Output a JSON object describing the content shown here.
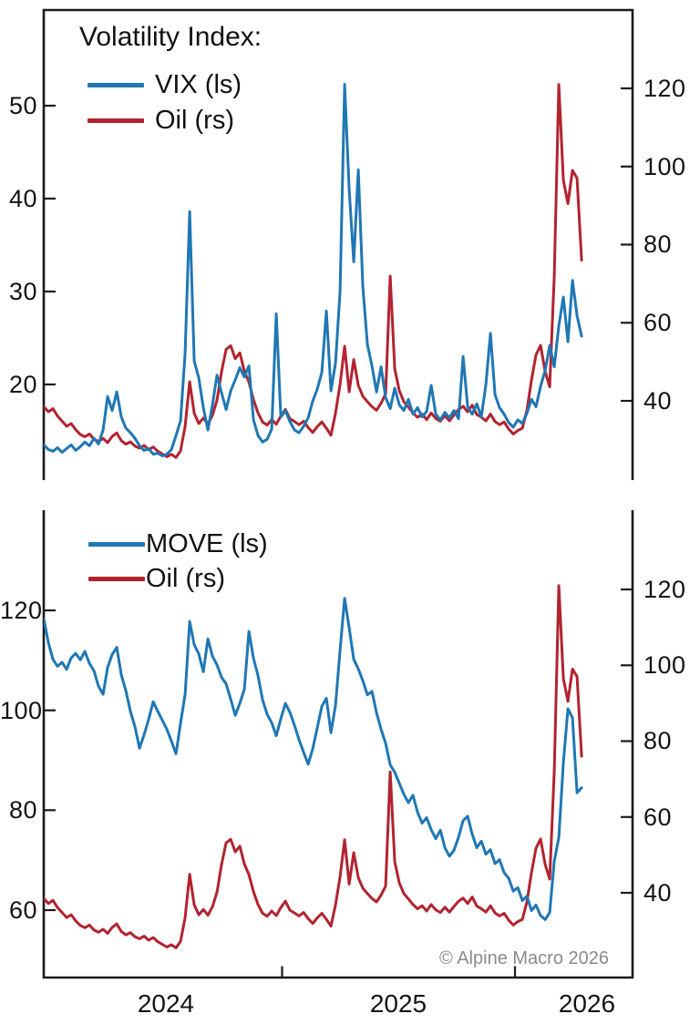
{
  "figure": {
    "copyright": "© Alpine Macro 2026",
    "accent_blue": "#1f77b4",
    "accent_red": "#b2232f",
    "axis_color": "#1a1a1a"
  },
  "top_panel": {
    "legend": {
      "title": "Volatility Index:",
      "items": [
        {
          "label": "VIX (ls)",
          "color": "#1f77b4"
        },
        {
          "label": "Oil (rs)",
          "color": "#b2232f"
        }
      ]
    },
    "left_ticks": [
      "50",
      "40",
      "30",
      "20"
    ],
    "right_ticks": [
      "120",
      "100",
      "80",
      "60",
      "40"
    ]
  },
  "bottom_panel": {
    "legend": {
      "items": [
        {
          "label": "MOVE (ls)",
          "color": "#1f77b4"
        },
        {
          "label": "Oil (rs)",
          "color": "#b2232f"
        }
      ]
    },
    "left_ticks": [
      "120",
      "100",
      "80",
      "60"
    ],
    "right_ticks": [
      "120",
      "100",
      "80",
      "60",
      "40"
    ]
  },
  "x_axis": {
    "labels": [
      "2024",
      "2025",
      "2026"
    ]
  },
  "chart_data": [
    {
      "type": "line",
      "title": "Volatility Index: VIX vs Oil volatility",
      "x_unit": "decimal_year",
      "x_start": 2023.977,
      "x_step": 0.01957,
      "xticks": [
        2025,
        2026
      ],
      "xtick_labels": [
        "2024",
        "2025",
        "2026"
      ],
      "ylim_left": [
        9.7,
        60.3
      ],
      "yticks_left": [
        20,
        30,
        40,
        50
      ],
      "ylim_right": [
        19.7,
        140.0
      ],
      "yticks_right": [
        40,
        60,
        80,
        100,
        120
      ],
      "grid": false,
      "legend_position": "upper-left",
      "series": [
        {
          "name": "VIX (ls)",
          "axis": "left",
          "color": "#1f77b4",
          "values": [
            13.5,
            13.0,
            12.8,
            13.2,
            12.7,
            13.1,
            13.5,
            12.9,
            13.3,
            13.8,
            13.4,
            14.2,
            13.6,
            15.1,
            18.7,
            17.2,
            19.2,
            16.5,
            15.3,
            14.8,
            14.2,
            13.4,
            12.9,
            13.1,
            12.5,
            12.6,
            12.3,
            12.5,
            13.0,
            14.5,
            16.1,
            23.4,
            38.6,
            22.5,
            20.7,
            17.5,
            15.1,
            17.8,
            21.0,
            19.1,
            17.3,
            19.3,
            20.5,
            21.8,
            20.8,
            22.0,
            16.2,
            14.5,
            13.8,
            14.1,
            15.2,
            27.6,
            16.5,
            17.2,
            16.0,
            15.1,
            14.8,
            15.5,
            16.4,
            18.2,
            19.5,
            21.3,
            27.9,
            19.3,
            22.3,
            30.0,
            52.3,
            41.0,
            33.2,
            43.1,
            30.5,
            24.3,
            22.0,
            19.2,
            21.9,
            18.6,
            17.4,
            19.6,
            17.8,
            17.2,
            18.4,
            16.8,
            17.5,
            16.5,
            17.1,
            19.9,
            16.8,
            16.2,
            17.0,
            16.4,
            17.2,
            16.3,
            23.0,
            17.6,
            16.8,
            17.9,
            16.5,
            20.0,
            25.5,
            18.9,
            17.5,
            16.8,
            15.9,
            15.4,
            16.2,
            15.8,
            16.9,
            18.4,
            17.6,
            19.8,
            21.5,
            24.2,
            21.9,
            26.3,
            29.4,
            24.6,
            31.2,
            27.4,
            25.2
          ]
        },
        {
          "name": "Oil (rs)",
          "axis": "right",
          "color": "#b2232f",
          "values": [
            38.5,
            37.2,
            38.0,
            36.1,
            34.8,
            33.5,
            34.2,
            32.6,
            31.4,
            30.8,
            31.5,
            30.2,
            29.6,
            30.4,
            29.3,
            30.9,
            31.8,
            29.8,
            28.9,
            29.5,
            28.4,
            27.9,
            28.6,
            27.5,
            28.2,
            27.1,
            26.4,
            25.7,
            26.3,
            25.5,
            27.2,
            33.5,
            44.9,
            36.8,
            34.2,
            35.6,
            34.1,
            36.3,
            40.2,
            47.5,
            53.2,
            54.1,
            50.8,
            52.3,
            47.6,
            44.8,
            40.3,
            36.9,
            34.6,
            33.8,
            35.2,
            34.0,
            36.1,
            37.8,
            35.4,
            34.7,
            33.9,
            34.8,
            33.2,
            31.9,
            33.4,
            34.6,
            33.0,
            31.2,
            36.8,
            44.2,
            54.0,
            42.3,
            50.6,
            44.0,
            41.2,
            39.8,
            38.5,
            37.6,
            39.4,
            41.8,
            71.9,
            48.2,
            42.6,
            39.8,
            38.4,
            36.9,
            35.8,
            36.6,
            35.2,
            36.9,
            35.5,
            34.8,
            36.2,
            34.9,
            36.4,
            37.8,
            38.6,
            37.2,
            38.9,
            36.5,
            35.8,
            34.9,
            36.6,
            34.7,
            33.9,
            34.6,
            32.8,
            31.5,
            32.4,
            33.0,
            37.6,
            45.3,
            51.8,
            54.2,
            47.5,
            43.6,
            72.0,
            121.0,
            96.5,
            90.5,
            99.0,
            97.0,
            76.0
          ]
        }
      ]
    },
    {
      "type": "line",
      "title": "MOVE vs Oil volatility",
      "x_unit": "decimal_year",
      "x_start": 2023.977,
      "x_step": 0.01957,
      "xticks": [
        2025,
        2026
      ],
      "xtick_labels": [
        "2024",
        "2025",
        "2026"
      ],
      "ylim_left": [
        46.5,
        140.1
      ],
      "yticks_left": [
        60,
        80,
        100,
        120
      ],
      "ylim_right": [
        17.7,
        140.9
      ],
      "yticks_right": [
        40,
        60,
        80,
        100,
        120
      ],
      "grid": false,
      "legend_position": "upper-left",
      "series": [
        {
          "name": "MOVE (ls)",
          "axis": "left",
          "color": "#1f77b4",
          "values": [
            118.3,
            113.5,
            110.2,
            108.8,
            109.6,
            108.2,
            110.5,
            111.4,
            110.1,
            111.8,
            109.4,
            107.9,
            104.8,
            103.2,
            108.6,
            111.2,
            112.6,
            107.1,
            103.9,
            99.8,
            96.7,
            92.4,
            95.1,
            98.2,
            101.7,
            99.8,
            98.0,
            96.2,
            93.8,
            91.3,
            97.4,
            103.2,
            117.8,
            113.1,
            111.3,
            107.7,
            114.3,
            110.8,
            109.1,
            106.6,
            105.3,
            102.2,
            99.0,
            101.4,
            104.2,
            115.8,
            110.4,
            106.9,
            102.1,
            99.2,
            97.5,
            94.9,
            98.3,
            101.4,
            99.6,
            97.0,
            94.1,
            91.6,
            89.2,
            92.3,
            96.5,
            100.8,
            102.4,
            95.5,
            101.0,
            112.0,
            122.4,
            116.5,
            110.2,
            108.3,
            105.9,
            103.1,
            103.8,
            99.5,
            96.2,
            93.4,
            89.1,
            87.6,
            85.4,
            83.2,
            81.5,
            83.0,
            79.6,
            77.4,
            78.5,
            76.1,
            74.3,
            76.0,
            72.5,
            70.8,
            72.0,
            74.6,
            77.9,
            78.8,
            75.2,
            72.5,
            73.8,
            71.2,
            72.1,
            69.3,
            70.1,
            67.5,
            66.4,
            63.8,
            64.5,
            61.9,
            62.8,
            59.9,
            61.0,
            58.9,
            58.1,
            59.5,
            69.8,
            74.5,
            89.5,
            100.3,
            98.5,
            83.5,
            84.5
          ]
        },
        {
          "name": "Oil (rs)",
          "axis": "right",
          "color": "#b2232f",
          "values": [
            38.5,
            37.2,
            38.0,
            36.1,
            34.8,
            33.5,
            34.2,
            32.6,
            31.4,
            30.8,
            31.5,
            30.2,
            29.6,
            30.4,
            29.3,
            30.9,
            31.8,
            29.8,
            28.9,
            29.5,
            28.4,
            27.9,
            28.6,
            27.5,
            28.2,
            27.1,
            26.4,
            25.7,
            26.3,
            25.5,
            27.2,
            33.5,
            44.9,
            36.8,
            34.2,
            35.6,
            34.1,
            36.3,
            40.2,
            47.5,
            53.2,
            54.1,
            50.8,
            52.3,
            47.6,
            44.8,
            40.3,
            36.9,
            34.6,
            33.8,
            35.2,
            34.0,
            36.1,
            37.8,
            35.4,
            34.7,
            33.9,
            34.8,
            33.2,
            31.9,
            33.4,
            34.6,
            33.0,
            31.2,
            36.8,
            44.2,
            54.0,
            42.3,
            50.6,
            44.0,
            41.2,
            39.8,
            38.5,
            37.6,
            39.4,
            41.8,
            71.9,
            48.2,
            42.6,
            39.8,
            38.4,
            36.9,
            35.8,
            36.6,
            35.2,
            36.9,
            35.5,
            34.8,
            36.2,
            34.9,
            36.4,
            37.8,
            38.6,
            37.2,
            38.9,
            36.5,
            35.8,
            34.9,
            36.6,
            34.7,
            33.9,
            34.6,
            32.8,
            31.5,
            32.4,
            33.0,
            37.6,
            45.3,
            51.8,
            54.2,
            47.5,
            43.6,
            72.0,
            121.0,
            96.5,
            90.5,
            99.0,
            97.0,
            76.0
          ]
        }
      ]
    }
  ]
}
